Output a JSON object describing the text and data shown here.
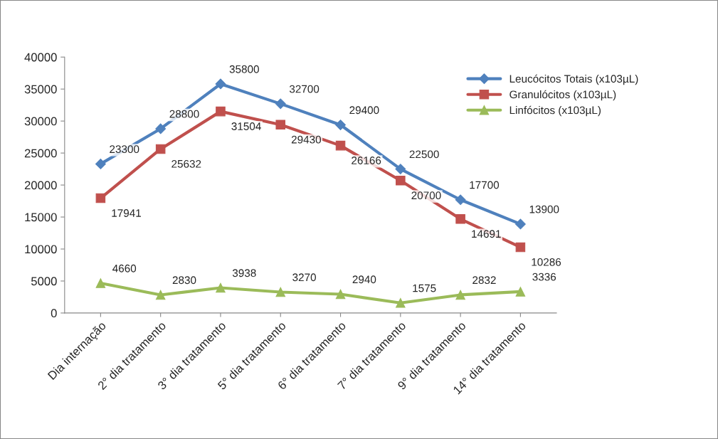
{
  "chart_data": {
    "type": "line",
    "categories": [
      "Dia internação",
      "2° dia tratamento",
      "3° dia tratamento",
      "5° dia tratamento",
      "6° dia tratamento",
      "7° dia tratamento",
      "9° dia tratamento",
      "14° dia tratamento"
    ],
    "series": [
      {
        "name": "Leucócitos Totais (x103µL)",
        "color": "#4f81bd",
        "marker": "diamond",
        "values": [
          23300,
          28800,
          35800,
          32700,
          29400,
          22500,
          17700,
          13900
        ]
      },
      {
        "name": "Granulócitos (x103µL)",
        "color": "#c0504d",
        "marker": "square",
        "values": [
          17941,
          25632,
          31504,
          29430,
          26166,
          20700,
          14691,
          10286
        ]
      },
      {
        "name": "Linfócitos (x103µL)",
        "color": "#9bbb59",
        "marker": "triangle",
        "values": [
          4660,
          2830,
          3938,
          3270,
          2940,
          1575,
          2832,
          3336
        ]
      }
    ],
    "ylim": [
      0,
      40000
    ],
    "yticks": [
      0,
      5000,
      10000,
      15000,
      20000,
      25000,
      30000,
      35000,
      40000
    ],
    "data_labels": true,
    "grid": false,
    "legend": "right",
    "line_style": "solid"
  }
}
